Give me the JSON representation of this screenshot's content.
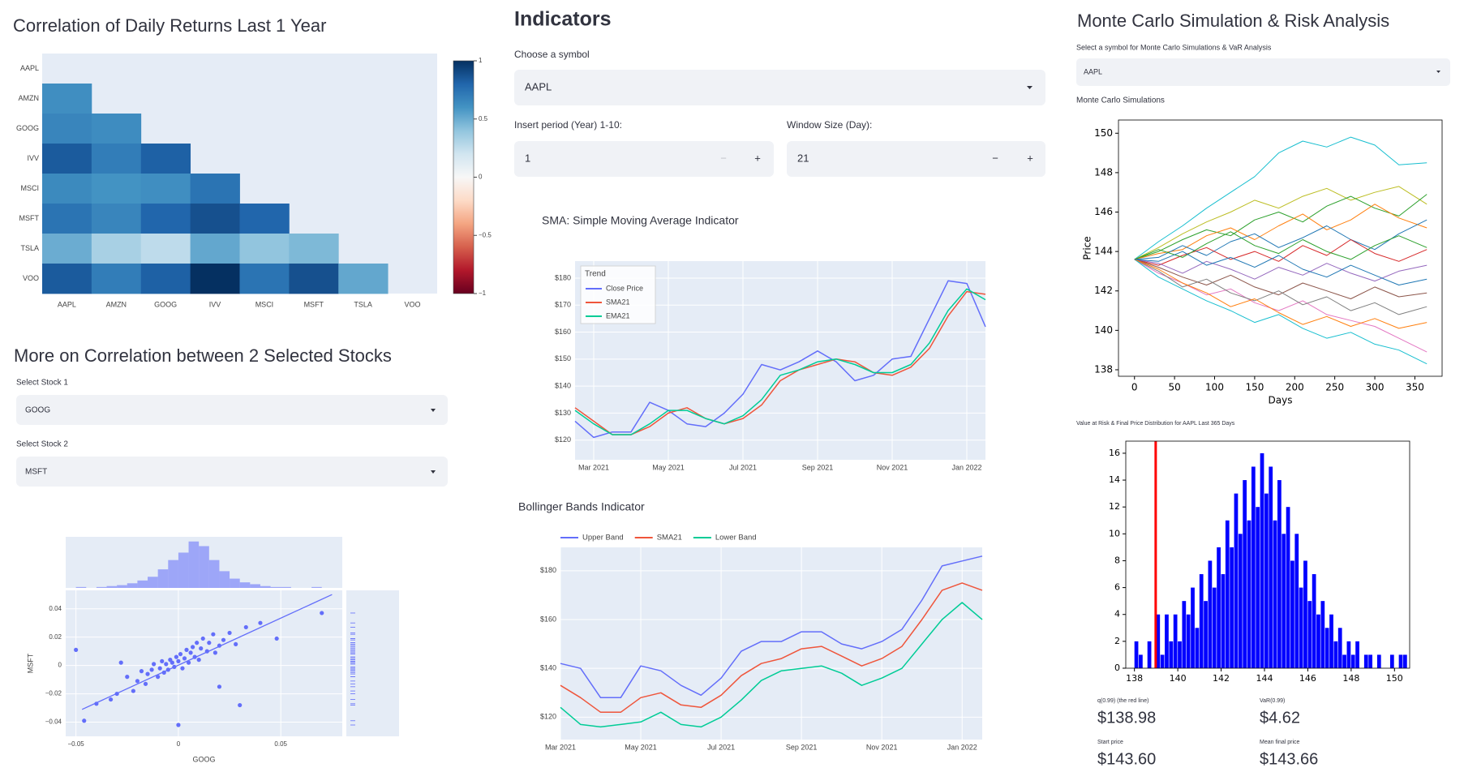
{
  "left": {
    "correlation_heading": "More on Correlation between 2 Selected Stocks",
    "stock1_label": "Select Stock 1",
    "stock1_value": "GOOG",
    "stock2_label": "Select Stock 2",
    "stock2_value": "MSFT"
  },
  "middle": {
    "heading": "Indicators",
    "symbol_label": "Choose a symbol",
    "symbol_value": "AAPL",
    "period_label": "Insert period (Year) 1-10:",
    "period_value": 1,
    "window_label": "Window Size (Day):",
    "window_value": 21,
    "step_down": "−",
    "step_up": "+"
  },
  "right": {
    "heading": "Monte Carlo Simulation & Risk Analysis",
    "symbol_label": "Select a symbol for Monte Carlo Simulations & VaR Analysis",
    "symbol_value": "AAPL",
    "metrics": [
      {
        "label": "q(0.99) (the red line)",
        "value": "$138.98"
      },
      {
        "label": "VaR(0.99)",
        "value": "$4.62"
      },
      {
        "label": "Start price",
        "value": "$143.60"
      },
      {
        "label": "Mean final price",
        "value": "$143.66"
      }
    ]
  },
  "chart_data": [
    {
      "type": "heatmap",
      "title": "Correlation of Daily Returns Last 1 Year",
      "x": [
        "AAPL",
        "AMZN",
        "GOOG",
        "IVV",
        "MSCI",
        "MSFT",
        "TSLA",
        "VOO"
      ],
      "y": [
        "AAPL",
        "AMZN",
        "GOOG",
        "IVV",
        "MSCI",
        "MSFT",
        "TSLA",
        "VOO"
      ],
      "z": [
        [
          null,
          null,
          null,
          null,
          null,
          null,
          null,
          null
        ],
        [
          0.62,
          null,
          null,
          null,
          null,
          null,
          null,
          null
        ],
        [
          0.66,
          0.63,
          null,
          null,
          null,
          null,
          null,
          null
        ],
        [
          0.84,
          0.7,
          0.82,
          null,
          null,
          null,
          null,
          null
        ],
        [
          0.64,
          0.6,
          0.62,
          0.74,
          null,
          null,
          null,
          null
        ],
        [
          0.74,
          0.66,
          0.8,
          0.88,
          0.8,
          null,
          null,
          null
        ],
        [
          0.5,
          0.33,
          0.26,
          0.52,
          0.4,
          0.45,
          null,
          null
        ],
        [
          0.84,
          0.7,
          0.82,
          1,
          0.74,
          0.88,
          0.52,
          null
        ]
      ],
      "zlim": [
        -1,
        1
      ],
      "colorbar_ticks": [
        1,
        0.5,
        0,
        {
          "value": -0.5,
          "label": "−0.5"
        },
        {
          "value": -1,
          "label": "−1"
        }
      ],
      "colorscale": [
        "#67001f",
        "#b2182b",
        "#d6604d",
        "#f4a582",
        "#fddbc7",
        "#f7f7f7",
        "#d1e5f0",
        "#92c5de",
        "#4393c3",
        "#2166ac",
        "#053061"
      ]
    },
    {
      "type": "scatter",
      "color": "#636efa",
      "xlabel": "GOOG",
      "ylabel": "MSFT",
      "x": [
        -0.046,
        -0.04,
        -0.033,
        -0.03,
        -0.028,
        -0.025,
        -0.022,
        -0.02,
        -0.018,
        -0.016,
        -0.015,
        -0.013,
        -0.012,
        -0.01,
        -0.009,
        -0.008,
        -0.007,
        -0.006,
        -0.005,
        -0.004,
        -0.003,
        -0.002,
        -0.001,
        0,
        0.001,
        0.002,
        0.003,
        0.004,
        0.005,
        0.006,
        0.007,
        0.008,
        0.009,
        0.01,
        0.011,
        0.012,
        0.014,
        0.015,
        0.017,
        0.018,
        0.02,
        0.022,
        0.025,
        0.028,
        0.03,
        0.033,
        0.04,
        0.048,
        0.07,
        -0.05,
        0.02,
        0
      ],
      "y": [
        -0.039,
        -0.027,
        -0.024,
        -0.02,
        0.002,
        -0.008,
        -0.018,
        -0.011,
        -0.004,
        -0.013,
        -0.006,
        -0.003,
        0.001,
        -0.008,
        -0.002,
        0.003,
        -0.005,
        0.001,
        -0.003,
        0.004,
        0.002,
        -0.001,
        0.006,
        0.003,
        0.008,
        -0.002,
        0.005,
        0.011,
        0.002,
        0.009,
        0.013,
        0.006,
        0.016,
        0.004,
        0.012,
        0.019,
        0.01,
        0.016,
        0.022,
        0.009,
        0.014,
        0.018,
        0.023,
        0.015,
        -0.028,
        0.027,
        0.03,
        0.019,
        0.037,
        0.011,
        -0.015,
        -0.042
      ],
      "xlim": [
        -0.055,
        0.08
      ],
      "ylim": [
        -0.05,
        0.053
      ],
      "xticks": [
        {
          "value": -0.05,
          "label": "−0.05"
        },
        0,
        0.05
      ],
      "yticks": [
        {
          "value": -0.04,
          "label": "−0.04"
        },
        {
          "value": -0.02,
          "label": "−0.02"
        },
        0,
        0.02,
        0.04
      ],
      "trendline": {
        "x": [
          -0.047,
          0.075
        ],
        "y": [
          -0.031,
          0.05
        ]
      },
      "marginal_x": {
        "bins": [
          -0.05,
          -0.045,
          -0.04,
          -0.035,
          -0.03,
          -0.025,
          -0.02,
          -0.015,
          -0.01,
          -0.005,
          0,
          0.005,
          0.01,
          0.015,
          0.02,
          0.025,
          0.03,
          0.035,
          0.04,
          0.045,
          0.05,
          0.055,
          0.06,
          0.065,
          0.07,
          0.075
        ],
        "counts": [
          1,
          0,
          1,
          2,
          3,
          5,
          8,
          12,
          20,
          30,
          38,
          50,
          45,
          30,
          18,
          10,
          6,
          4,
          2,
          1,
          1,
          0,
          0,
          1,
          0
        ],
        "ylim": [
          0,
          55
        ]
      }
    },
    {
      "type": "line",
      "title": "SMA: Simple Moving Average Indicator",
      "grid": true,
      "legend": "top-left",
      "legend_title": "Trend",
      "categories": [
        null,
        "Mar 2021",
        null,
        null,
        null,
        "May 2021",
        null,
        null,
        null,
        "Jul 2021",
        null,
        null,
        null,
        "Sep 2021",
        null,
        null,
        null,
        "Nov 2021",
        null,
        null,
        null,
        "Jan 2022",
        null
      ],
      "series": [
        {
          "name": "Close Price",
          "color": "#636efa",
          "values": [
            127,
            121,
            123,
            123,
            134,
            131,
            126,
            125,
            130,
            137,
            148,
            146,
            149,
            153,
            149,
            142,
            144,
            150,
            151,
            165,
            179,
            178,
            162
          ]
        },
        {
          "name": "SMA21",
          "color": "#ef553b",
          "values": [
            132,
            127,
            122,
            122,
            125,
            130,
            132,
            128,
            126,
            128,
            133,
            142,
            146,
            148,
            150,
            149,
            145,
            144,
            147,
            154,
            166,
            175,
            174
          ]
        },
        {
          "name": "EMA21",
          "color": "#00cc96",
          "values": [
            131,
            126,
            122,
            122,
            126,
            131,
            131,
            128,
            126,
            129,
            135,
            144,
            146,
            149,
            150,
            148,
            145,
            145,
            148,
            156,
            168,
            176,
            172
          ]
        }
      ],
      "ylim": [
        112.7,
        186.3
      ],
      "yticks": [
        {
          "value": 120,
          "label": "$120"
        },
        {
          "value": 130,
          "label": "$130"
        },
        {
          "value": 140,
          "label": "$140"
        },
        {
          "value": 150,
          "label": "$150"
        },
        {
          "value": 160,
          "label": "$160"
        },
        {
          "value": 170,
          "label": "$170"
        },
        {
          "value": 180,
          "label": "$180"
        }
      ]
    },
    {
      "type": "line",
      "title": "Bollinger Bands Indicator",
      "grid": true,
      "legend": "top",
      "categories": [
        "Mar 2021",
        null,
        null,
        null,
        "May 2021",
        null,
        null,
        null,
        "Jul 2021",
        null,
        null,
        null,
        "Sep 2021",
        null,
        null,
        null,
        "Nov 2021",
        null,
        null,
        null,
        "Jan 2022",
        null
      ],
      "series": [
        {
          "name": "Upper Band",
          "color": "#636efa",
          "values": [
            142,
            140,
            128,
            128,
            141,
            139,
            133,
            129,
            136,
            147,
            151,
            151,
            155,
            155,
            150,
            148,
            151,
            156,
            168,
            182,
            184,
            186
          ]
        },
        {
          "name": "SMA21",
          "color": "#ef553b",
          "values": [
            133,
            128,
            122,
            122,
            128,
            130,
            125,
            124,
            129,
            137,
            142,
            144,
            148,
            149,
            145,
            141,
            144,
            149,
            160,
            172,
            175,
            172
          ]
        },
        {
          "name": "Lower Band",
          "color": "#00cc96",
          "values": [
            124,
            117,
            116,
            117,
            118,
            122,
            117,
            116,
            120,
            127,
            135,
            139,
            140,
            141,
            138,
            133,
            136,
            140,
            150,
            160,
            167,
            160
          ]
        }
      ],
      "ylim": [
        110.8,
        189.6
      ],
      "yticks": [
        {
          "value": 120,
          "label": "$120"
        },
        {
          "value": 140,
          "label": "$140"
        },
        {
          "value": 160,
          "label": "$160"
        },
        {
          "value": 180,
          "label": "$180"
        }
      ]
    },
    {
      "type": "line",
      "title": "Monte Carlo Simulations",
      "xlabel": "Days",
      "ylabel": "Price",
      "x": [
        0,
        30,
        60,
        90,
        120,
        150,
        180,
        210,
        240,
        270,
        300,
        330,
        365
      ],
      "series": [
        {
          "color": "#17becf",
          "values": [
            143.6,
            144.5,
            145.3,
            146.2,
            147,
            147.8,
            149,
            149.6,
            149.3,
            149.8,
            149.4,
            148.4,
            148.5
          ]
        },
        {
          "color": "#bcbd22",
          "values": [
            143.6,
            144.2,
            144.9,
            145.5,
            146,
            146.6,
            146.2,
            146.8,
            147.2,
            146.6,
            147,
            147.3,
            146.4
          ]
        },
        {
          "color": "#2ca02c",
          "values": [
            143.6,
            144,
            144.6,
            145.1,
            144.8,
            145.6,
            146,
            145.5,
            146.3,
            146.8,
            146.2,
            145.8,
            146.9
          ]
        },
        {
          "color": "#ff7f0e",
          "values": [
            143.6,
            143.9,
            144.1,
            144.8,
            145.2,
            144.6,
            145.3,
            145.9,
            145.1,
            145.6,
            146.4,
            145.7,
            145.2
          ]
        },
        {
          "color": "#1f77b4",
          "values": [
            143.6,
            143.7,
            144.3,
            143.8,
            144.5,
            144.9,
            144.2,
            144.7,
            145.3,
            144.6,
            144.1,
            144.9,
            145.6
          ]
        },
        {
          "color": "#d62728",
          "values": [
            143.6,
            143.3,
            143.8,
            144.2,
            143.6,
            144,
            143.5,
            144.3,
            143.8,
            144.6,
            143.9,
            143.5,
            144.1
          ]
        },
        {
          "color": "#9467bd",
          "values": [
            143.6,
            143.4,
            142.9,
            143.5,
            143.1,
            142.6,
            143.2,
            142.8,
            143.4,
            142.9,
            142.5,
            143,
            143.3
          ]
        },
        {
          "color": "#8c564b",
          "values": [
            143.6,
            143.2,
            142.7,
            142.3,
            142.8,
            142.2,
            141.8,
            142.4,
            142,
            141.6,
            142.2,
            141.7,
            141.9
          ]
        },
        {
          "color": "#e377c2",
          "values": [
            143.6,
            142.9,
            142.4,
            141.8,
            142.1,
            141.4,
            141,
            141.5,
            140.8,
            140.5,
            140.2,
            139.6,
            138.9
          ]
        },
        {
          "color": "#7f7f7f",
          "values": [
            143.6,
            143,
            142.2,
            142.6,
            141.9,
            141.5,
            142,
            141.3,
            141.7,
            141,
            141.4,
            140.8,
            141.2
          ]
        },
        {
          "color": "#17becf",
          "values": [
            143.6,
            142.7,
            142.1,
            141.5,
            141,
            140.4,
            140.8,
            140.1,
            139.6,
            139.9,
            139.3,
            139,
            138.3
          ]
        },
        {
          "color": "#ff7f0e",
          "values": [
            143.6,
            143.1,
            142.4,
            141.9,
            141.2,
            141.6,
            140.9,
            140.3,
            140.7,
            140.2,
            140.6,
            140.1,
            140.4
          ]
        },
        {
          "color": "#2ca02c",
          "values": [
            143.6,
            144.1,
            143.7,
            144.4,
            145,
            144.3,
            143.9,
            144.6,
            144,
            143.6,
            144.3,
            144.8,
            144.2
          ]
        },
        {
          "color": "#1f77b4",
          "values": [
            143.6,
            143.5,
            144,
            143.3,
            143.7,
            143.2,
            143.8,
            143.1,
            142.7,
            143.3,
            142.8,
            142.3,
            142.6
          ]
        }
      ],
      "xlim": [
        -20,
        384
      ],
      "ylim": [
        137.67,
        150.67
      ],
      "xticks": [
        0,
        50,
        100,
        150,
        200,
        250,
        300,
        350
      ],
      "yticks": [
        138,
        140,
        142,
        144,
        146,
        148,
        150
      ]
    },
    {
      "type": "histogram",
      "title": "Value at Risk & Final Price Distribution for AAPL Last 365 Days",
      "color": "#0000ff",
      "bins": [
        138,
        138.2,
        138.4,
        138.6,
        138.8,
        139,
        139.2,
        139.4,
        139.6,
        139.8,
        140,
        140.2,
        140.4,
        140.6,
        140.8,
        141,
        141.2,
        141.4,
        141.6,
        141.8,
        142,
        142.2,
        142.4,
        142.6,
        142.8,
        143,
        143.2,
        143.4,
        143.6,
        143.8,
        144,
        144.2,
        144.4,
        144.6,
        144.8,
        145,
        145.2,
        145.4,
        145.6,
        145.8,
        146,
        146.2,
        146.4,
        146.6,
        146.8,
        147,
        147.2,
        147.4,
        147.6,
        147.8,
        148,
        148.2,
        148.4,
        148.6,
        148.8,
        149,
        149.2,
        149.4,
        149.6,
        149.8,
        150,
        150.2,
        150.4,
        150.6
      ],
      "counts": [
        2,
        1,
        0,
        2,
        0,
        4,
        1,
        4,
        2,
        4,
        2,
        5,
        4,
        6,
        3,
        7,
        5,
        8,
        6,
        9,
        7,
        11,
        9,
        13,
        10,
        14,
        11,
        15,
        12,
        16,
        13,
        15,
        11,
        14,
        10,
        12,
        8,
        10,
        6,
        8,
        5,
        7,
        4,
        5,
        3,
        4,
        2,
        3,
        1,
        2,
        1,
        2,
        0,
        1,
        1,
        0,
        1,
        0,
        0,
        1,
        0,
        1,
        1
      ],
      "vline": {
        "value": 138.98,
        "color": "#ff0000"
      },
      "xlim": [
        137.6,
        150.7
      ],
      "ylim": [
        0,
        16.9
      ],
      "xticks": [
        138,
        140,
        142,
        144,
        146,
        148,
        150
      ],
      "yticks": [
        0,
        2,
        4,
        6,
        8,
        10,
        12,
        14,
        16
      ]
    }
  ]
}
